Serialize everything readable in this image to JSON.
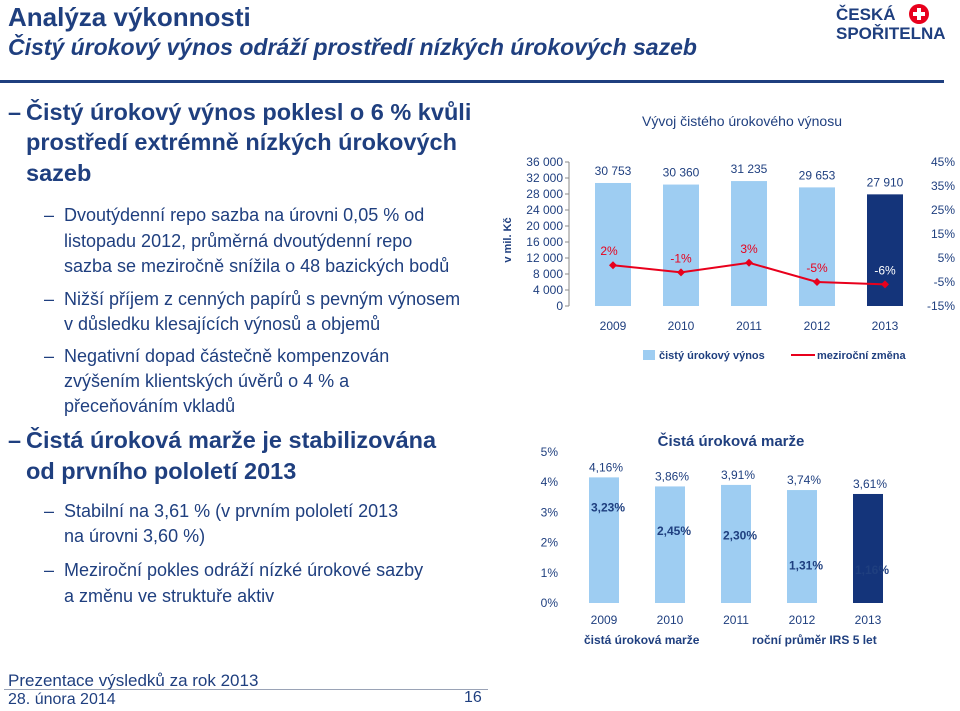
{
  "header": {
    "title": "Analýza výkonnosti",
    "subtitle": "Čistý úrokový výnos odráží prostředí nízkých úrokových sazeb",
    "logo_line1": "ČESKÁ",
    "logo_line2": "SPOŘITELNA"
  },
  "bullets": {
    "b1": [
      "Čistý úrokový výnos poklesl o 6 % kvůli",
      "prostředí extrémně nízkých úrokových",
      "sazeb"
    ],
    "b1_1": [
      "Dvoutýdenní repo sazba na úrovni 0,05 % od",
      "listopadu 2012, průměrná dvoutýdenní repo",
      "sazba se meziročně snížila o 48 bazických bodů"
    ],
    "b1_2": [
      "Nižší příjem z cenných papírů s pevným výnosem",
      "v důsledku klesajících výnosů a objemů"
    ],
    "b1_3": [
      "Negativní dopad částečně kompenzován",
      "zvýšením klientských úvěrů o 4 % a",
      "přeceňováním vkladů"
    ],
    "b2": [
      "Čistá úroková marže je stabilizována",
      "od prvního pololetí 2013"
    ],
    "b2_1": [
      "Stabilní na 3,61 % (v prvním pololetí 2013",
      "na úrovni 3,60 %)"
    ],
    "b2_2": [
      "Meziroční pokles odráží nízké úrokové sazby",
      "a změnu ve struktuře aktiv"
    ]
  },
  "footer": {
    "line1": "Prezentace výsledků za rok 2013",
    "line2": "28. února 2014",
    "page": "16"
  },
  "colors": {
    "navy": "#1f3f7f",
    "light_blue": "#9ecdf2",
    "red": "#e8001c",
    "dark_bar": "#14347a"
  },
  "chart_data": [
    {
      "type": "bar",
      "title": "Vývoj čistého úrokového výnosu",
      "ylabel": "v mil. Kč",
      "categories": [
        "2009",
        "2010",
        "2011",
        "2012",
        "2013"
      ],
      "ylim": [
        0,
        36000
      ],
      "y_ticks": [
        "36 000",
        "32 000",
        "28 000",
        "24 000",
        "20 000",
        "16 000",
        "12 000",
        "8 000",
        "4 000",
        "0"
      ],
      "y2_ticks": [
        "45%",
        "35%",
        "25%",
        "15%",
        "5%",
        "-5%",
        "-15%"
      ],
      "y2lim": [
        -15,
        45
      ],
      "series": [
        {
          "name": "čistý úrokový výnos",
          "values": [
            30753,
            30360,
            31235,
            29653,
            27910
          ],
          "labels": [
            "30 753",
            "30 360",
            "31 235",
            "29 653",
            "27 910"
          ]
        },
        {
          "name": "meziroční změna",
          "values": [
            2,
            -1,
            3,
            -5,
            -6
          ],
          "labels": [
            "2%",
            "-1%",
            "3%",
            "-5%",
            "-6%"
          ]
        }
      ],
      "legend": "bottom"
    },
    {
      "type": "bar",
      "title": "Čistá úroková marže",
      "categories": [
        "2009",
        "2010",
        "2011",
        "2012",
        "2013"
      ],
      "ylim": [
        0,
        5
      ],
      "y_ticks": [
        "5%",
        "4%",
        "3%",
        "2%",
        "1%",
        "0%"
      ],
      "series": [
        {
          "name": "čistá úroková marže",
          "values": [
            4.16,
            3.86,
            3.91,
            3.74,
            3.61
          ],
          "labels": [
            "4,16%",
            "3,86%",
            "3,91%",
            "3,74%",
            "3,61%"
          ]
        },
        {
          "name": "roční průměr IRS 5 let",
          "values": [
            3.23,
            2.45,
            2.3,
            1.31,
            1.16
          ],
          "labels": [
            "3,23%",
            "2,45%",
            "2,30%",
            "1,31%",
            "1,16%"
          ]
        }
      ],
      "legend": "bottom"
    }
  ]
}
